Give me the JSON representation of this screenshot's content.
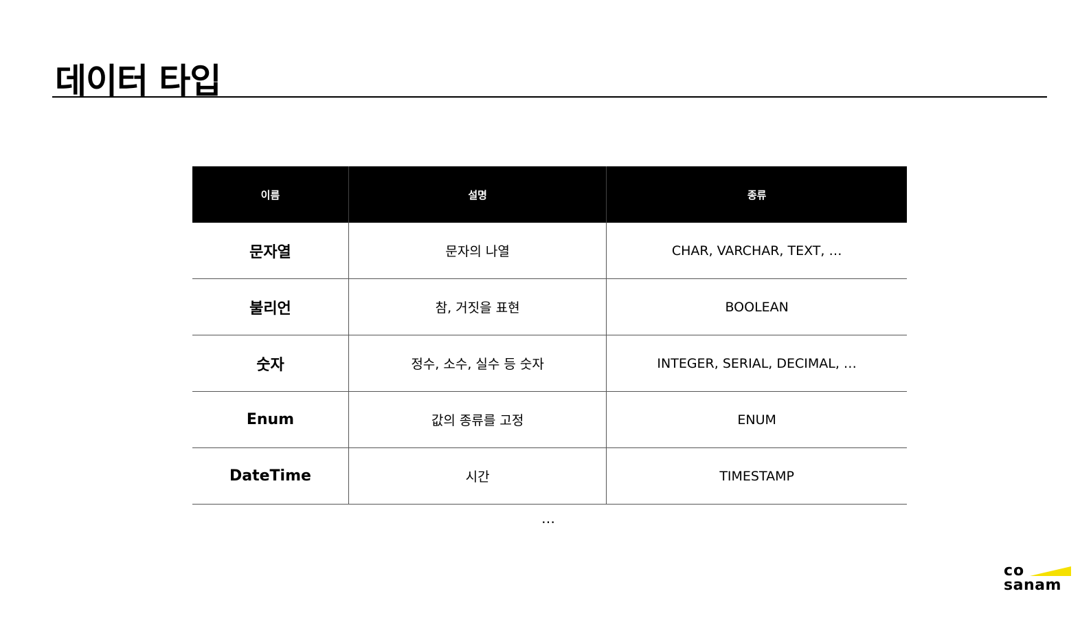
{
  "title": "데이터 타입",
  "table": {
    "headers": [
      "이름",
      "설명",
      "종류"
    ],
    "rows": [
      {
        "name": "문자열",
        "description": "문자의 나열",
        "types": "CHAR, VARCHAR, TEXT, …"
      },
      {
        "name": "불리언",
        "description": "참, 거짓을 표현",
        "types": "BOOLEAN"
      },
      {
        "name": "숫자",
        "description": "정수, 소수, 실수 등 숫자",
        "types": "INTEGER, SERIAL, DECIMAL, …"
      },
      {
        "name": "Enum",
        "description": "값의 종류를 고정",
        "types": "ENUM"
      },
      {
        "name": "DateTime",
        "description": "시간",
        "types": "TIMESTAMP"
      }
    ]
  },
  "more": "…",
  "logo": {
    "line1": "co",
    "line2": "sanam",
    "accent": "#f5e000"
  }
}
